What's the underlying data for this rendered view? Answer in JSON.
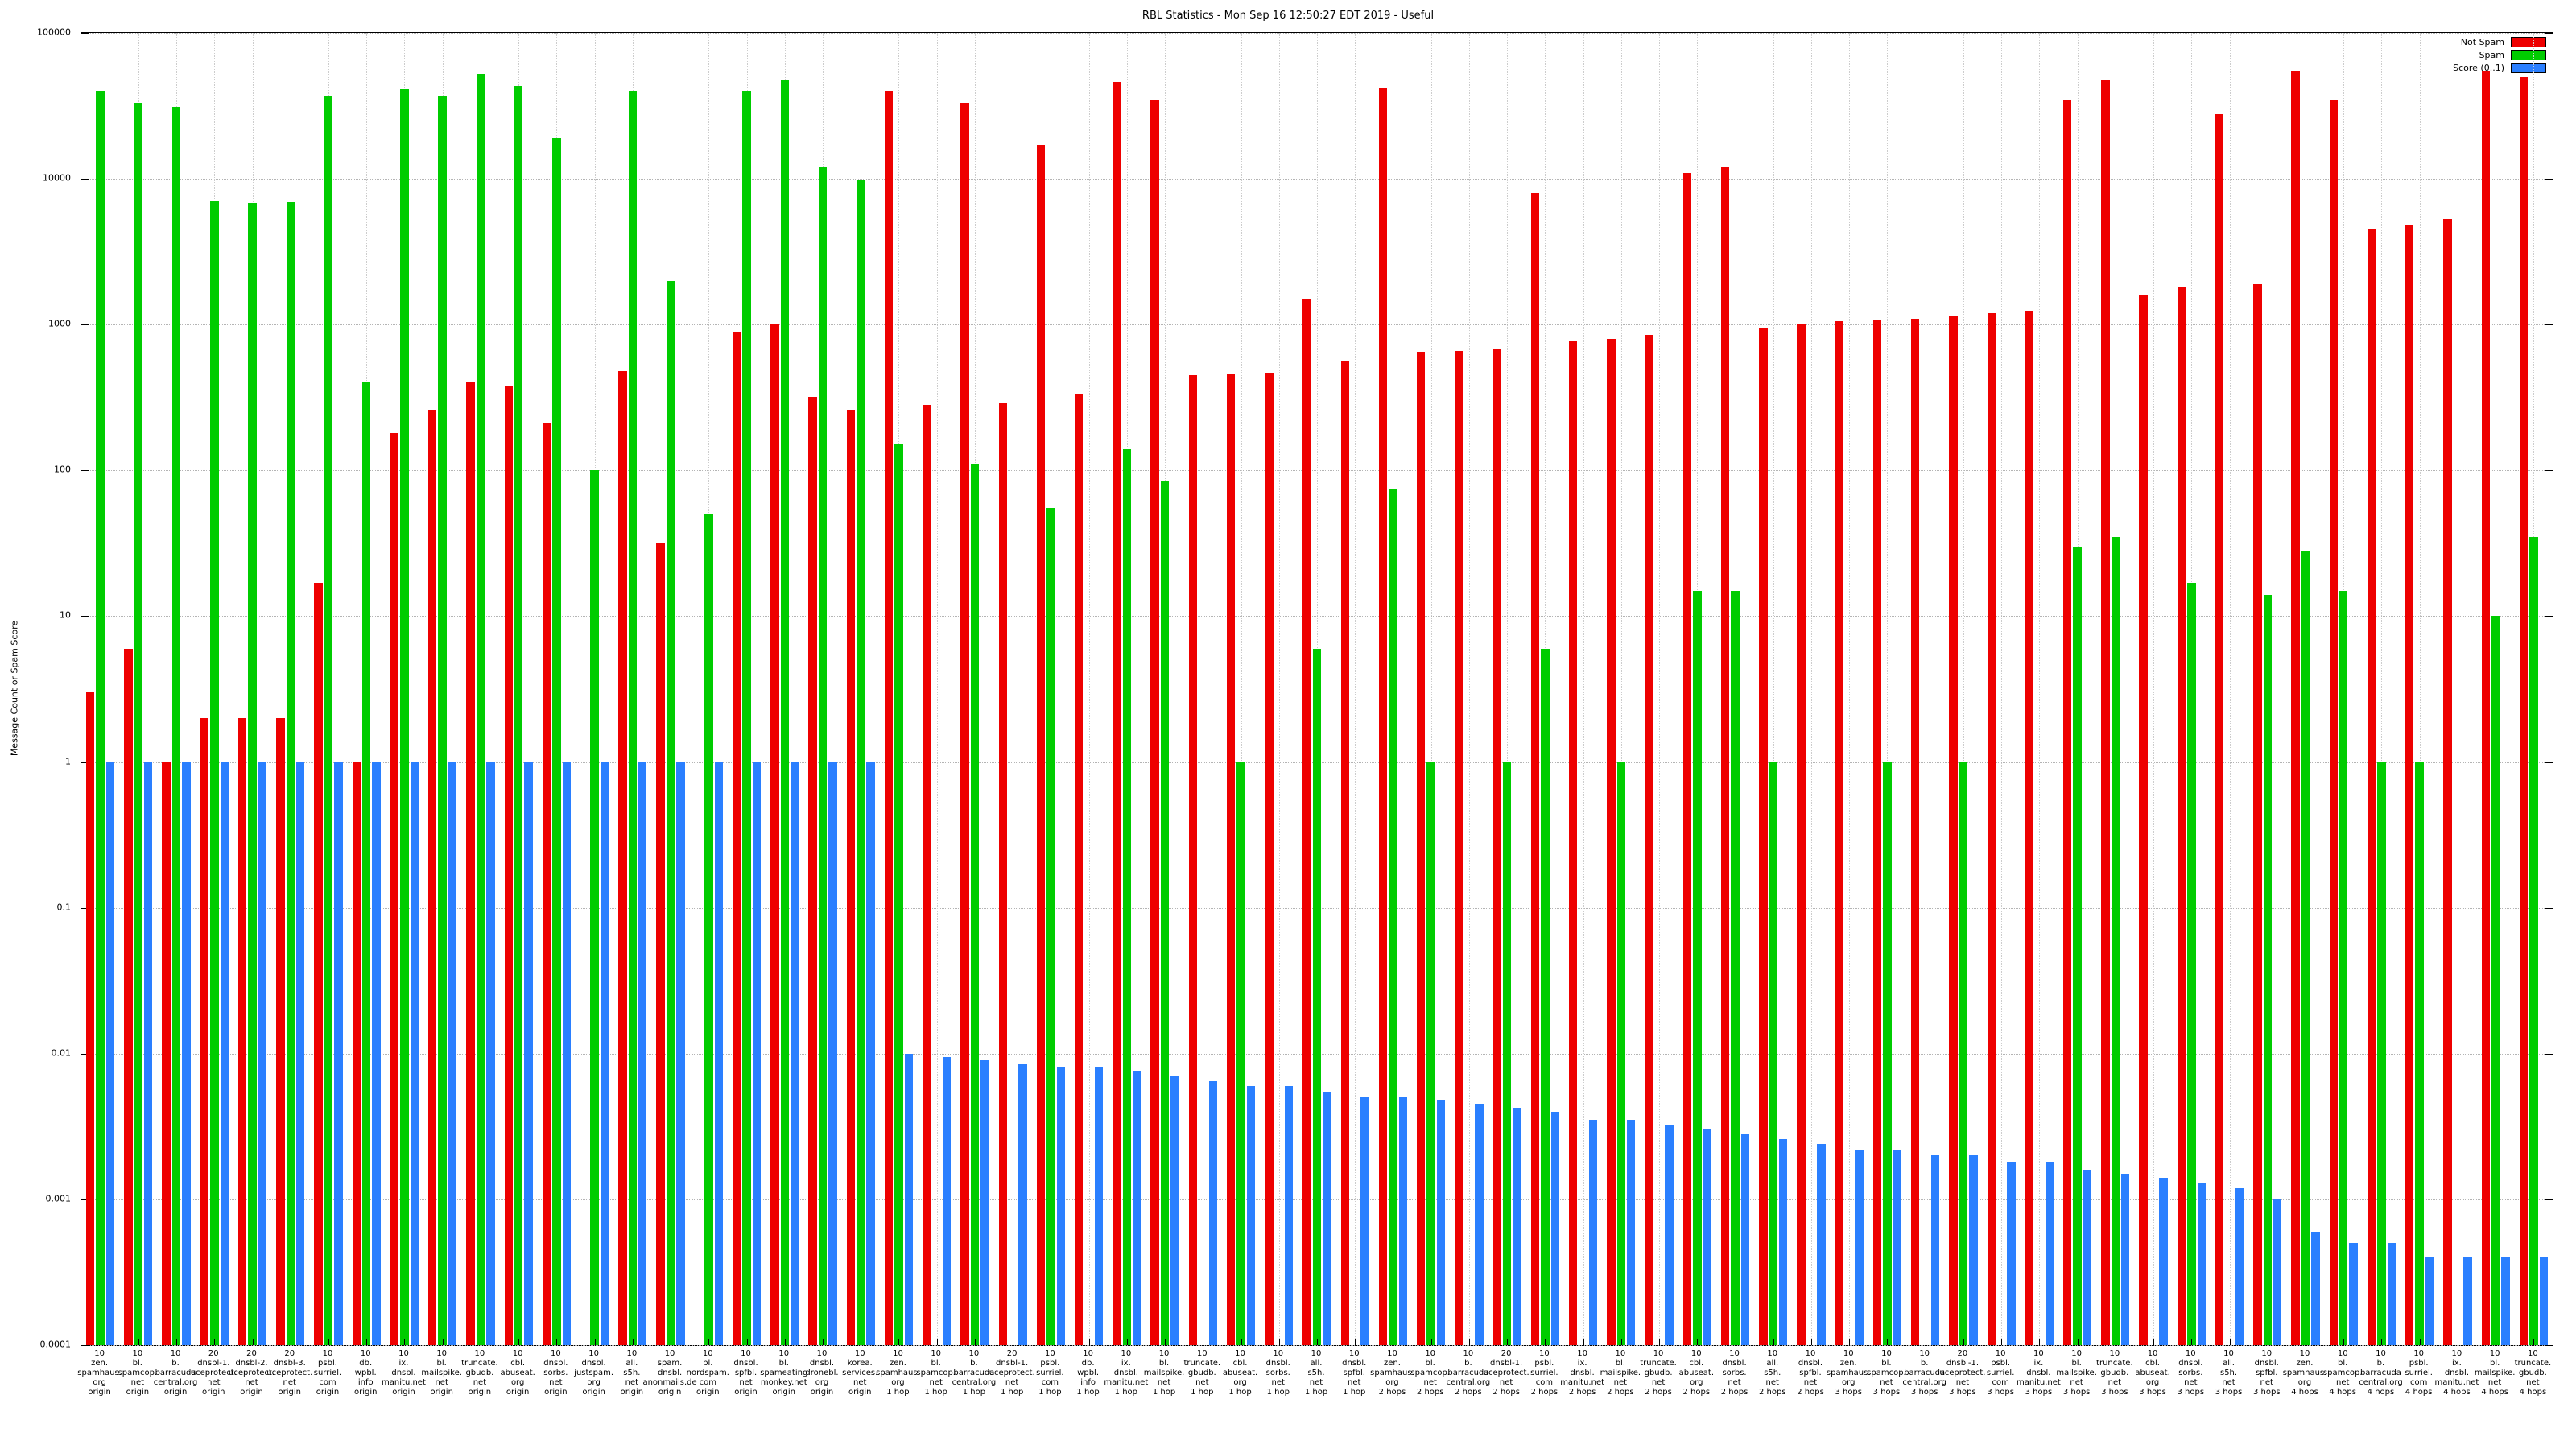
{
  "title": "RBL Statistics - Mon Sep 16 12:50:27 EDT 2019 - Useful",
  "y_axis_label": "Message Count or Spam Score",
  "legend": [
    {
      "label": "Not Spam",
      "color": "#ee0000"
    },
    {
      "label": "Spam",
      "color": "#00cc00"
    },
    {
      "label": "Score (0..1)",
      "color": "#2a7fff"
    }
  ],
  "chart_data": {
    "type": "bar",
    "orientation": "vertical",
    "scale": "log",
    "ylim": [
      0.0001,
      100000
    ],
    "yticks": [
      "100000",
      "10000",
      "1000",
      "100",
      "10",
      "1",
      "0.1",
      "0.01",
      "0.001",
      "0.0001"
    ],
    "grid": true,
    "legend_position": "top-right",
    "series_names": [
      "Not Spam",
      "Spam",
      "Score (0..1)"
    ],
    "groups": [
      {
        "label": "10\nzen.\nspamhaus.\norg\norigin",
        "not_spam": 3,
        "spam": 40000,
        "score": 1
      },
      {
        "label": "10\nbl.\nspamcop.\nnet\norigin",
        "not_spam": 6,
        "spam": 33000,
        "score": 1
      },
      {
        "label": "10\nb.\nbarracuda\ncentral.org\norigin",
        "not_spam": 1,
        "spam": 31000,
        "score": 1
      },
      {
        "label": "20\ndnsbl-1.\nuceprotect.\nnet\norigin",
        "not_spam": 2,
        "spam": 7000,
        "score": 1
      },
      {
        "label": "20\ndnsbl-2.\nuceprotect.\nnet\norigin",
        "not_spam": 2,
        "spam": 6800,
        "score": 1
      },
      {
        "label": "20\ndnsbl-3.\nuceprotect.\nnet\norigin",
        "not_spam": 2,
        "spam": 6900,
        "score": 1
      },
      {
        "label": "10\npsbl.\nsurriel.\ncom\norigin",
        "not_spam": 17,
        "spam": 37000,
        "score": 1
      },
      {
        "label": "10\ndb.\nwpbl.\ninfo\norigin",
        "not_spam": 1,
        "spam": 400,
        "score": 1
      },
      {
        "label": "10\nix.\ndnsbl.\nmanitu.net\norigin",
        "not_spam": 180,
        "spam": 41000,
        "score": 1
      },
      {
        "label": "10\nbl.\nmailspike.\nnet\norigin",
        "not_spam": 260,
        "spam": 37000,
        "score": 1
      },
      {
        "label": "10\ntruncate.\ngbudb.\nnet\norigin",
        "not_spam": 400,
        "spam": 52000,
        "score": 1
      },
      {
        "label": "10\ncbl.\nabuseat.\norg\norigin",
        "not_spam": 380,
        "spam": 43000,
        "score": 1
      },
      {
        "label": "10\ndnsbl.\nsorbs.\nnet\norigin",
        "not_spam": 210,
        "spam": 19000,
        "score": 1
      },
      {
        "label": "10\ndnsbl.\njustspam.\norg\norigin",
        "not_spam": 0,
        "spam": 100,
        "score": 1
      },
      {
        "label": "10\nall.\ns5h.\nnet\norigin",
        "not_spam": 480,
        "spam": 40000,
        "score": 1
      },
      {
        "label": "10\nspam.\ndnsbl.\nanonmails.de\norigin",
        "not_spam": 32,
        "spam": 2000,
        "score": 1
      },
      {
        "label": "10\nbl.\nnordspam.\ncom\norigin",
        "not_spam": 0,
        "spam": 50,
        "score": 1
      },
      {
        "label": "10\ndnsbl.\nspfbl.\nnet\norigin",
        "not_spam": 900,
        "spam": 40000,
        "score": 1
      },
      {
        "label": "10\nbl.\nspameating\nmonkey.net\norigin",
        "not_spam": 1000,
        "spam": 48000,
        "score": 1
      },
      {
        "label": "10\ndnsbl.\ndronebl.\norg\norigin",
        "not_spam": 320,
        "spam": 12000,
        "score": 1
      },
      {
        "label": "10\nkorea.\nservices.\nnet\norigin",
        "not_spam": 260,
        "spam": 9800,
        "score": 1
      },
      {
        "label": "10\nzen.\nspamhaus.\norg\n1 hop",
        "not_spam": 40000,
        "spam": 150,
        "score": 0.01
      },
      {
        "label": "10\nbl.\nspamcop.\nnet\n1 hop",
        "not_spam": 280,
        "spam": 0,
        "score": 0.0095
      },
      {
        "label": "10\nb.\nbarracuda\ncentral.org\n1 hop",
        "not_spam": 33000,
        "spam": 110,
        "score": 0.009
      },
      {
        "label": "20\ndnsbl-1.\nuceprotect.\nnet\n1 hop",
        "not_spam": 290,
        "spam": 0,
        "score": 0.0085
      },
      {
        "label": "10\npsbl.\nsurriel.\ncom\n1 hop",
        "not_spam": 17000,
        "spam": 55,
        "score": 0.008
      },
      {
        "label": "10\ndb.\nwpbl.\ninfo\n1 hop",
        "not_spam": 330,
        "spam": 0,
        "score": 0.008
      },
      {
        "label": "10\nix.\ndnsbl.\nmanitu.net\n1 hop",
        "not_spam": 46000,
        "spam": 140,
        "score": 0.0075
      },
      {
        "label": "10\nbl.\nmailspike.\nnet\n1 hop",
        "not_spam": 35000,
        "spam": 85,
        "score": 0.007
      },
      {
        "label": "10\ntruncate.\ngbudb.\nnet\n1 hop",
        "not_spam": 450,
        "spam": 0,
        "score": 0.0065
      },
      {
        "label": "10\ncbl.\nabuseat.\norg\n1 hop",
        "not_spam": 460,
        "spam": 1,
        "score": 0.006
      },
      {
        "label": "10\ndnsbl.\nsorbs.\nnet\n1 hop",
        "not_spam": 470,
        "spam": 0,
        "score": 0.006
      },
      {
        "label": "10\nall.\ns5h.\nnet\n1 hop",
        "not_spam": 1500,
        "spam": 6,
        "score": 0.0055
      },
      {
        "label": "10\ndnsbl.\nspfbl.\nnet\n1 hop",
        "not_spam": 560,
        "spam": 0,
        "score": 0.005
      },
      {
        "label": "10\nzen.\nspamhaus.\norg\n2 hops",
        "not_spam": 42000,
        "spam": 75,
        "score": 0.005
      },
      {
        "label": "10\nbl.\nspamcop.\nnet\n2 hops",
        "not_spam": 650,
        "spam": 1,
        "score": 0.0048
      },
      {
        "label": "10\nb.\nbarracuda\ncentral.org\n2 hops",
        "not_spam": 660,
        "spam": 0,
        "score": 0.0045
      },
      {
        "label": "20\ndnsbl-1.\nuceprotect.\nnet\n2 hops",
        "not_spam": 680,
        "spam": 1,
        "score": 0.0042
      },
      {
        "label": "10\npsbl.\nsurriel.\ncom\n2 hops",
        "not_spam": 8000,
        "spam": 6,
        "score": 0.004
      },
      {
        "label": "10\nix.\ndnsbl.\nmanitu.net\n2 hops",
        "not_spam": 780,
        "spam": 0,
        "score": 0.0035
      },
      {
        "label": "10\nbl.\nmailspike.\nnet\n2 hops",
        "not_spam": 800,
        "spam": 1,
        "score": 0.0035
      },
      {
        "label": "10\ntruncate.\ngbudb.\nnet\n2 hops",
        "not_spam": 850,
        "spam": 0,
        "score": 0.0032
      },
      {
        "label": "10\ncbl.\nabuseat.\norg\n2 hops",
        "not_spam": 11000,
        "spam": 15,
        "score": 0.003
      },
      {
        "label": "10\ndnsbl.\nsorbs.\nnet\n2 hops",
        "not_spam": 12000,
        "spam": 15,
        "score": 0.0028
      },
      {
        "label": "10\nall.\ns5h.\nnet\n2 hops",
        "not_spam": 950,
        "spam": 1,
        "score": 0.0026
      },
      {
        "label": "10\ndnsbl.\nspfbl.\nnet\n2 hops",
        "not_spam": 1000,
        "spam": 0,
        "score": 0.0024
      },
      {
        "label": "10\nzen.\nspamhaus.\norg\n3 hops",
        "not_spam": 1050,
        "spam": 0,
        "score": 0.0022
      },
      {
        "label": "10\nbl.\nspamcop.\nnet\n3 hops",
        "not_spam": 1080,
        "spam": 1,
        "score": 0.0022
      },
      {
        "label": "10\nb.\nbarracuda\ncentral.org\n3 hops",
        "not_spam": 1100,
        "spam": 0,
        "score": 0.002
      },
      {
        "label": "20\ndnsbl-1.\nuceprotect.\nnet\n3 hops",
        "not_spam": 1150,
        "spam": 1,
        "score": 0.002
      },
      {
        "label": "10\npsbl.\nsurriel.\ncom\n3 hops",
        "not_spam": 1200,
        "spam": 0,
        "score": 0.0018
      },
      {
        "label": "10\nix.\ndnsbl.\nmanitu.net\n3 hops",
        "not_spam": 1250,
        "spam": 0,
        "score": 0.0018
      },
      {
        "label": "10\nbl.\nmailspike.\nnet\n3 hops",
        "not_spam": 35000,
        "spam": 30,
        "score": 0.0016
      },
      {
        "label": "10\ntruncate.\ngbudb.\nnet\n3 hops",
        "not_spam": 48000,
        "spam": 35,
        "score": 0.0015
      },
      {
        "label": "10\ncbl.\nabuseat.\norg\n3 hops",
        "not_spam": 1600,
        "spam": 0,
        "score": 0.0014
      },
      {
        "label": "10\ndnsbl.\nsorbs.\nnet\n3 hops",
        "not_spam": 1800,
        "spam": 17,
        "score": 0.0013
      },
      {
        "label": "10\nall.\ns5h.\nnet\n3 hops",
        "not_spam": 28000,
        "spam": 0,
        "score": 0.0012
      },
      {
        "label": "10\ndnsbl.\nspfbl.\nnet\n3 hops",
        "not_spam": 1900,
        "spam": 14,
        "score": 0.001
      },
      {
        "label": "10\nzen.\nspamhaus.\norg\n4 hops",
        "not_spam": 55000,
        "spam": 28,
        "score": 0.0006
      },
      {
        "label": "10\nbl.\nspamcop.\nnet\n4 hops",
        "not_spam": 35000,
        "spam": 15,
        "score": 0.0005
      },
      {
        "label": "10\nb.\nbarracuda\ncentral.org\n4 hops",
        "not_spam": 4500,
        "spam": 1,
        "score": 0.0005
      },
      {
        "label": "10\npsbl.\nsurriel.\ncom\n4 hops",
        "not_spam": 4800,
        "spam": 1,
        "score": 0.0004
      },
      {
        "label": "10\nix.\ndnsbl.\nmanitu.net\n4 hops",
        "not_spam": 5300,
        "spam": 0,
        "score": 0.0004
      },
      {
        "label": "10\nbl.\nmailspike.\nnet\n4 hops",
        "not_spam": 55000,
        "spam": 10,
        "score": 0.0004
      },
      {
        "label": "10\ntruncate.\ngbudb.\nnet\n4 hops",
        "not_spam": 50000,
        "spam": 35,
        "score": 0.0004
      }
    ]
  }
}
